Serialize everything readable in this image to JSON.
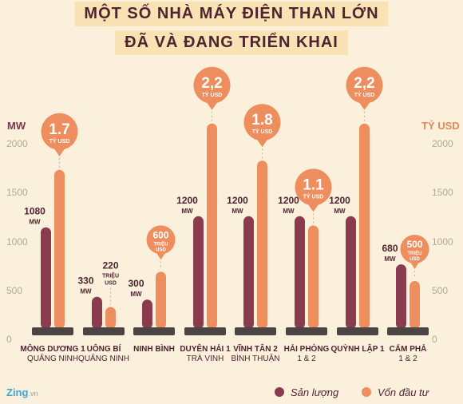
{
  "title": {
    "line1": "MỘT SỐ NHÀ MÁY ĐIỆN THAN LỚN",
    "line2": "ĐÃ VÀ ĐANG TRIỂN KHAI"
  },
  "axes": {
    "left_unit": "MW",
    "right_unit": "TỶ USD",
    "left_ticks": [
      "2000",
      "1500",
      "1000",
      "500",
      "0"
    ],
    "right_ticks": [
      "2000",
      "1500",
      "1000",
      "500",
      "0"
    ]
  },
  "legend": {
    "output_label": "Sản lượng",
    "capital_label": "Vốn đầu tư"
  },
  "brand": {
    "name": "Zing",
    "suffix": ".vn"
  },
  "colors": {
    "output": "#8a3b4e",
    "capital": "#ee8d5e",
    "title_bg": "#f9e2b4",
    "base": "#4a4542",
    "background": "#fbf0dc"
  },
  "chart_data": {
    "type": "bar",
    "ylim": [
      0,
      2000
    ],
    "plants": [
      {
        "name": "MÔNG DƯƠNG 1",
        "province": "QUẢNG NINH",
        "capacity_mw": 1080,
        "capacity_label": [
          "1080",
          "MW"
        ],
        "capital_scaled": 1700,
        "capital_label": [
          "1.7",
          "TỶ USD"
        ],
        "badge": "big"
      },
      {
        "name": "UÔNG BÍ",
        "province": "QUẢNG NINH",
        "capacity_mw": 330,
        "capacity_label": [
          "330",
          "MW"
        ],
        "capital_scaled": 220,
        "capital_label": [
          "220",
          "TRIỆU",
          "USD"
        ],
        "badge": "none"
      },
      {
        "name": "NINH BÌNH",
        "province": "",
        "capacity_mw": 300,
        "capacity_label": [
          "300",
          "MW"
        ],
        "capital_scaled": 600,
        "capital_label": [
          "600",
          "TRIỆU",
          "USD"
        ],
        "badge": "small"
      },
      {
        "name": "DUYÊN HẢI 1",
        "province": "TRÀ VINH",
        "capacity_mw": 1200,
        "capacity_label": [
          "1200",
          "MW"
        ],
        "capital_scaled": 2200,
        "capital_label": [
          "2,2",
          "TỶ USD"
        ],
        "badge": "big"
      },
      {
        "name": "VĨNH TÂN 2",
        "province": "BÌNH THUẬN",
        "capacity_mw": 1200,
        "capacity_label": [
          "1200",
          "MW"
        ],
        "capital_scaled": 1800,
        "capital_label": [
          "1.8",
          "TỶ USD"
        ],
        "badge": "big"
      },
      {
        "name": "HẢI PHÒNG",
        "province": "1 & 2",
        "capacity_mw": 1200,
        "capacity_label": [
          "1200",
          "MW"
        ],
        "capital_scaled": 1100,
        "capital_label": [
          "1.1",
          "TỶ USD"
        ],
        "badge": "big"
      },
      {
        "name": "QUỲNH LẬP 1",
        "province": "",
        "capacity_mw": 1200,
        "capacity_label": [
          "1200",
          "MW"
        ],
        "capital_scaled": 2200,
        "capital_label": [
          "2,2",
          "TỶ USD"
        ],
        "badge": "big"
      },
      {
        "name": "CẨM PHẢ",
        "province": "1 & 2",
        "capacity_mw": 680,
        "capacity_label": [
          "680",
          "MW"
        ],
        "capital_scaled": 500,
        "capital_label": [
          "500",
          "TRIỆU",
          "USD"
        ],
        "badge": "small"
      }
    ]
  }
}
